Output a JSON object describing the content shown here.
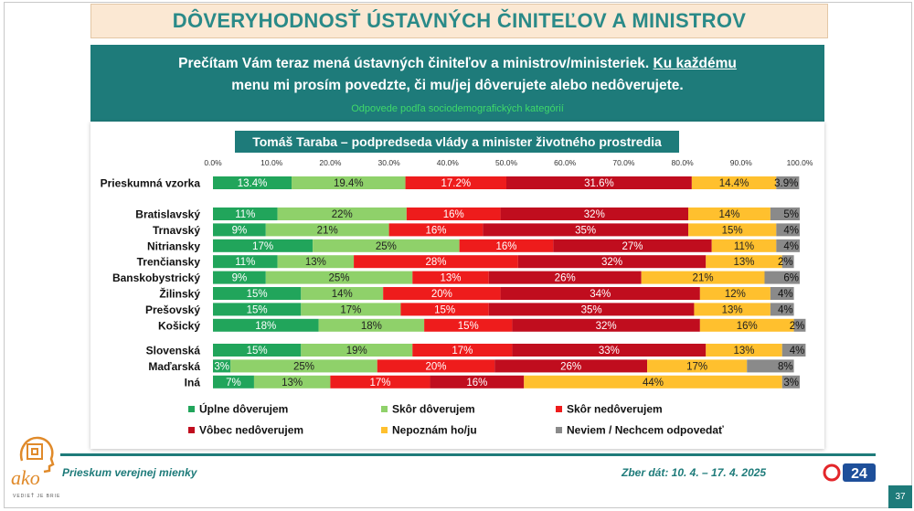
{
  "title": "DÔVERYHODNOSŤ ÚSTAVNÝCH ČINITEĽOV A MINISTROV",
  "question": {
    "part1": "Prečítam Vám teraz mená ústavných činiteľov a ministrov/ministeriek. ",
    "underlined": "Ku každému",
    "part2": " menu mi prosím povedzte, či mu/jej dôverujete alebo nedôverujete.",
    "subtitle": "Odpovede podľa sociodemografických kategórií"
  },
  "footer": {
    "left": "Prieskum verejnej mienky",
    "right": "Zber dát: 10. 4. – 17. 4. 2025",
    "page": "37",
    "logo_text": "ako",
    "logo_sub": "VEDIEŤ JE BRIE",
    "brand": "24"
  },
  "colors": {
    "teal": "#1e7b7a",
    "series": [
      "#21a55b",
      "#8fd16a",
      "#ee1c1c",
      "#c00d1e",
      "#ffc02e",
      "#8a8a8a"
    ]
  },
  "chart_data": {
    "type": "bar",
    "orientation": "horizontal",
    "stacked": true,
    "title": "Tomáš Taraba – podpredseda vlády a minister životného prostredia",
    "xlim": [
      0,
      100
    ],
    "xticks": [
      "0.0%",
      "10.0%",
      "20.0%",
      "30.0%",
      "40.0%",
      "50.0%",
      "60.0%",
      "70.0%",
      "80.0%",
      "90.0%",
      "100.0%"
    ],
    "legend_position": "bottom",
    "series_names": [
      "Úplne dôverujem",
      "Skôr dôverujem",
      "Skôr nedôverujem",
      "Vôbec nedôverujem",
      "Nepoznám ho/ju",
      "Neviem / Nechcem odpovedať"
    ],
    "groups": [
      {
        "rows": [
          {
            "label": "Prieskumná vzorka",
            "values": [
              13.4,
              19.4,
              17.2,
              31.6,
              14.4,
              3.9
            ],
            "labels": [
              "13.4%",
              "19.4%",
              "17.2%",
              "31.6%",
              "14.4%",
              "3.9%"
            ]
          }
        ]
      },
      {
        "rows": [
          {
            "label": "Bratislavský",
            "values": [
              11,
              22,
              16,
              32,
              14,
              5
            ],
            "labels": [
              "11%",
              "22%",
              "16%",
              "32%",
              "14%",
              "5%"
            ]
          },
          {
            "label": "Trnavský",
            "values": [
              9,
              21,
              16,
              35,
              15,
              4
            ],
            "labels": [
              "9%",
              "21%",
              "16%",
              "35%",
              "15%",
              "4%"
            ]
          },
          {
            "label": "Nitriansky",
            "values": [
              17,
              25,
              16,
              27,
              11,
              4
            ],
            "labels": [
              "17%",
              "25%",
              "16%",
              "27%",
              "11%",
              "4%"
            ]
          },
          {
            "label": "Trenčiansky",
            "values": [
              11,
              13,
              28,
              32,
              13,
              2
            ],
            "labels": [
              "11%",
              "13%",
              "28%",
              "32%",
              "13%",
              "2%"
            ]
          },
          {
            "label": "Banskobystrický",
            "values": [
              9,
              25,
              13,
              26,
              21,
              6
            ],
            "labels": [
              "9%",
              "25%",
              "13%",
              "26%",
              "21%",
              "6%"
            ]
          },
          {
            "label": "Žilinský",
            "values": [
              15,
              14,
              20,
              34,
              12,
              4
            ],
            "labels": [
              "15%",
              "14%",
              "20%",
              "34%",
              "12%",
              "4%"
            ]
          },
          {
            "label": "Prešovský",
            "values": [
              15,
              17,
              15,
              35,
              13,
              4
            ],
            "labels": [
              "15%",
              "17%",
              "15%",
              "35%",
              "13%",
              "4%"
            ]
          },
          {
            "label": "Košický",
            "values": [
              18,
              18,
              15,
              32,
              16,
              2
            ],
            "labels": [
              "18%",
              "18%",
              "15%",
              "32%",
              "16%",
              "2%"
            ]
          }
        ]
      },
      {
        "rows": [
          {
            "label": "Slovenská",
            "values": [
              15,
              19,
              17,
              33,
              13,
              4
            ],
            "labels": [
              "15%",
              "19%",
              "17%",
              "33%",
              "13%",
              "4%"
            ]
          },
          {
            "label": "Maďarská",
            "values": [
              3,
              25,
              20,
              26,
              17,
              8
            ],
            "labels": [
              "3%",
              "25%",
              "20%",
              "26%",
              "17%",
              "8%"
            ]
          },
          {
            "label": "Iná",
            "values": [
              7,
              13,
              17,
              16,
              44,
              3
            ],
            "labels": [
              "7%",
              "13%",
              "17%",
              "16%",
              "44%",
              "3%"
            ]
          }
        ]
      }
    ]
  }
}
